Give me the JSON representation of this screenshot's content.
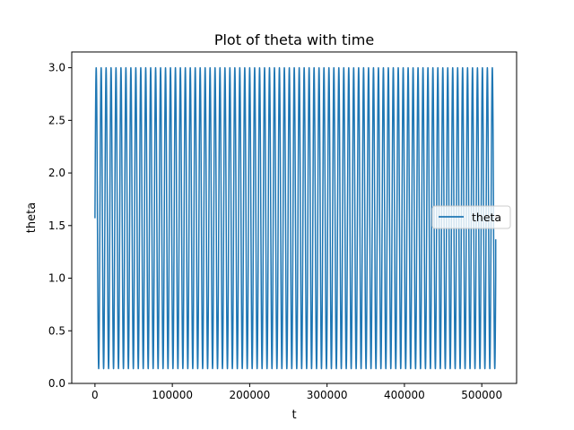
{
  "chart_data": {
    "type": "line",
    "title": "Plot of theta with time",
    "xlabel": "t",
    "ylabel": "theta",
    "xlim": [
      -30000,
      545000
    ],
    "ylim": [
      0.0,
      3.15
    ],
    "x_ticks": [
      0,
      100000,
      200000,
      300000,
      400000,
      500000
    ],
    "x_tick_labels": [
      "0",
      "100000",
      "200000",
      "300000",
      "400000",
      "500000"
    ],
    "y_ticks": [
      0.0,
      0.5,
      1.0,
      1.5,
      2.0,
      2.5,
      3.0
    ],
    "y_tick_labels": [
      "0.0",
      "0.5",
      "1.0",
      "1.5",
      "2.0",
      "2.5",
      "3.0"
    ],
    "grid": false,
    "legend_position": "center-right",
    "series": [
      {
        "name": "theta",
        "color": "#1f77b4",
        "description": "oscillation between ~0.14 and ~3.0, period ~6400 in t, starting at ~1.57 at t=0 and ending at ~1.37 at t~518000",
        "t_start": 0,
        "t_end": 518000,
        "theta_start": 1.57,
        "theta_min": 0.14,
        "theta_max": 3.0,
        "period": 6400,
        "theta_end": 1.37
      }
    ]
  }
}
